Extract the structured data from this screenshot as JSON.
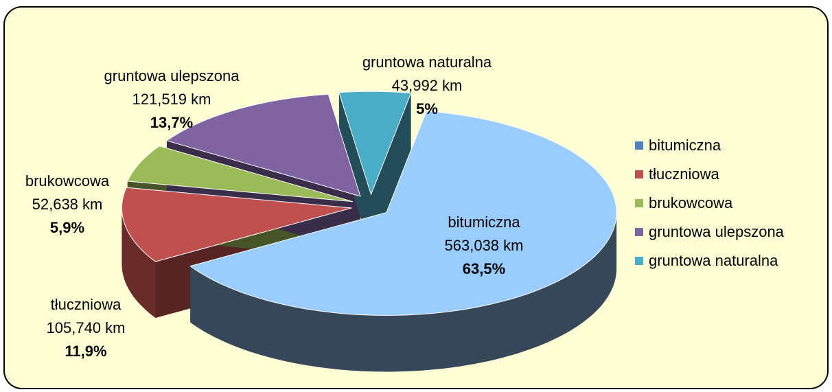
{
  "chart_data": {
    "type": "pie3d",
    "categories": [
      "bitumiczna",
      "tłuczniowa",
      "brukowcowa",
      "gruntowa ulepszona",
      "gruntowa naturalna"
    ],
    "values": [
      63.5,
      11.9,
      5.9,
      13.7,
      5
    ],
    "value_labels": [
      "63,5%",
      "11,9%",
      "5,9%",
      "13,7%",
      "5%"
    ],
    "km_labels": [
      "563,038 km",
      "105,740 km",
      "52,638 km",
      "121,519 km",
      "43,992 km"
    ],
    "colors": [
      "#99CCFF",
      "#C0504D",
      "#9BBB59",
      "#8064A2",
      "#4BACC6"
    ],
    "legend_colors": [
      "#4F81BD",
      "#C0504D",
      "#9BBB59",
      "#8064A2",
      "#4BACC6"
    ],
    "legend": "right"
  }
}
